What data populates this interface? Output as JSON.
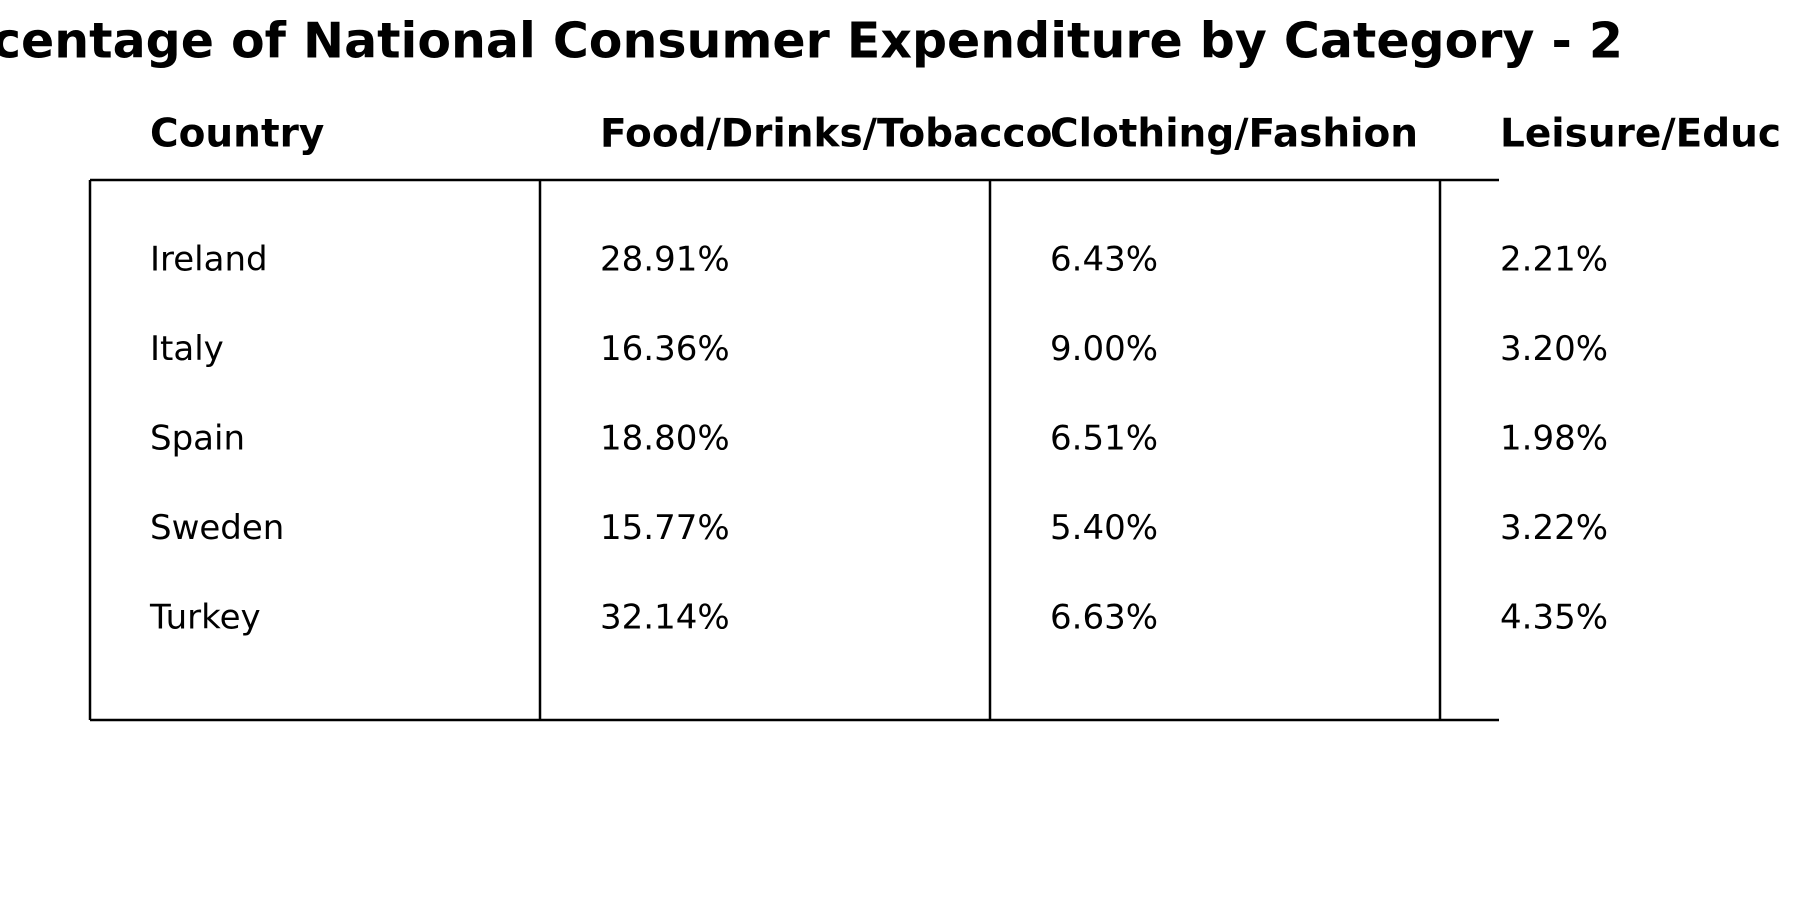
{
  "header": {
    "title": "centage of National Consumer Expenditure by Category - 2"
  },
  "table": {
    "columns": [
      "Country",
      "Food/Drinks/Tobacco",
      "Clothing/Fashion",
      "Leisure/Educ"
    ],
    "rows": [
      [
        "Ireland",
        "28.91%",
        "6.43%",
        "2.21%"
      ],
      [
        "Italy",
        "16.36%",
        "9.00%",
        "3.20%"
      ],
      [
        "Spain",
        "18.80%",
        "6.51%",
        "1.98%"
      ],
      [
        "Sweden",
        "15.77%",
        "5.40%",
        "3.22%"
      ],
      [
        "Turkey",
        "32.14%",
        "6.63%",
        "4.35%"
      ]
    ]
  }
}
